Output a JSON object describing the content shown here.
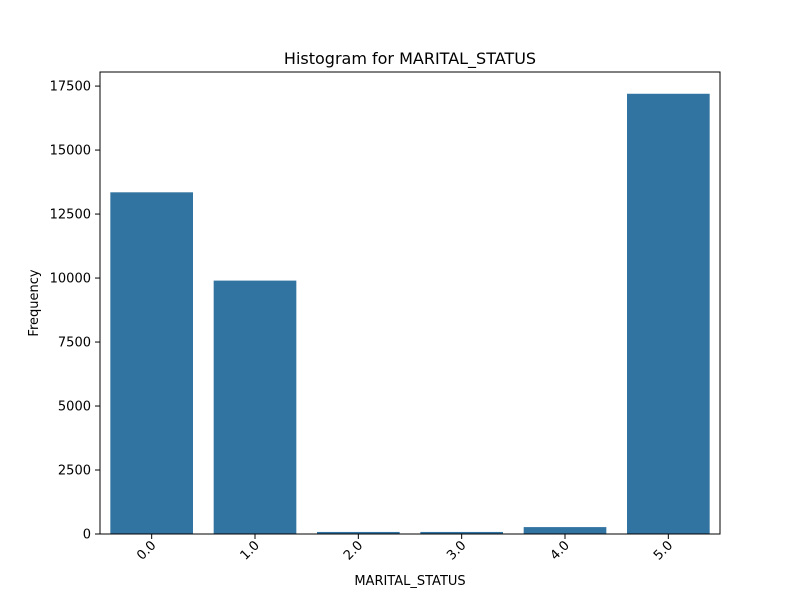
{
  "chart_data": {
    "type": "bar",
    "title": "Histogram for MARITAL_STATUS",
    "xlabel": "MARITAL_STATUS",
    "ylabel": "Frequency",
    "categories": [
      "0.0",
      "1.0",
      "2.0",
      "3.0",
      "4.0",
      "5.0"
    ],
    "values": [
      13350,
      9900,
      80,
      80,
      270,
      17200
    ],
    "ylim": [
      0,
      18050
    ],
    "yticks": [
      0,
      2500,
      5000,
      7500,
      10000,
      12500,
      15000,
      17500
    ],
    "grid": false,
    "legend": "none",
    "bar_color": "#3274a1"
  }
}
